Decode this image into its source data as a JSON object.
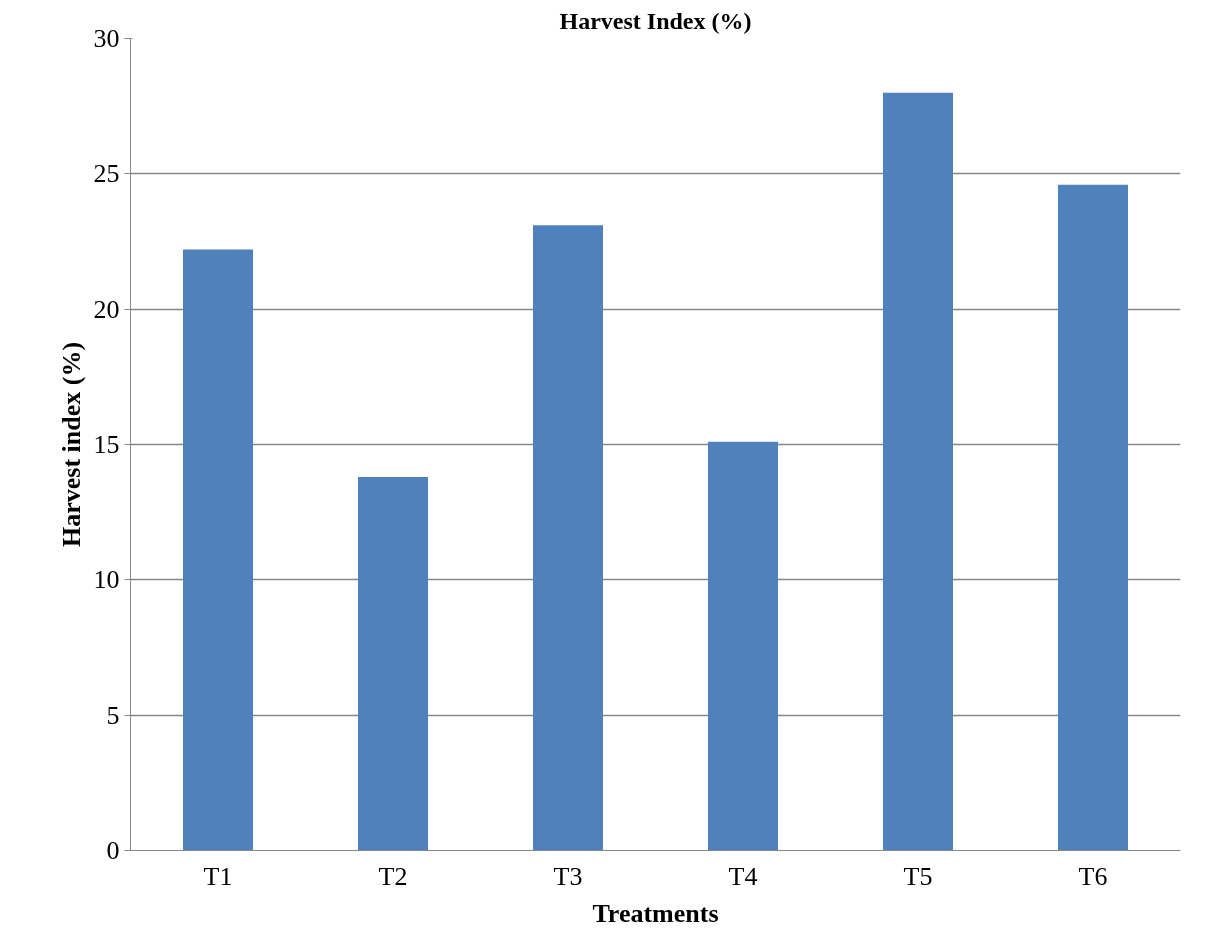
{
  "chart_data": {
    "type": "bar",
    "title": "Harvest Index (%)",
    "xlabel": "Treatments",
    "ylabel": "Harvest index (%)",
    "categories": [
      "T1",
      "T2",
      "T3",
      "T4",
      "T5",
      "T6"
    ],
    "series": [
      {
        "color": "#4f81bd",
        "values": [
          22.2,
          13.8,
          23.1,
          15.1,
          28.0,
          24.6
        ]
      }
    ],
    "ylim": [
      0,
      30
    ],
    "yticks": [
      0,
      5,
      10,
      15,
      20,
      25,
      30
    ],
    "grid": "y"
  }
}
